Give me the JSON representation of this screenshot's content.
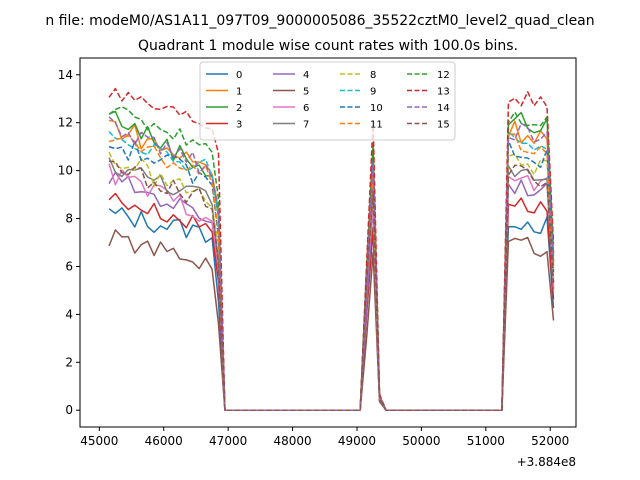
{
  "figure": {
    "suptitle": "n file: modeM0/AS1A11_097T09_9000005086_35522cztM0_level2_quad_clean",
    "offset_text": "+3.884e8"
  },
  "chart_data": {
    "type": "line",
    "title": "Quadrant 1 module wise count rates with 100.0s bins.",
    "xlabel": "",
    "ylabel": "",
    "x_offset": 388400000,
    "xlim": [
      44700,
      52400
    ],
    "ylim": [
      -0.7,
      14.7
    ],
    "xticks": [
      45000,
      46000,
      47000,
      48000,
      49000,
      50000,
      51000,
      52000
    ],
    "xtick_labels": [
      "45000",
      "46000",
      "47000",
      "48000",
      "49000",
      "50000",
      "51000",
      "52000"
    ],
    "yticks": [
      0,
      2,
      4,
      6,
      8,
      10,
      12,
      14
    ],
    "ytick_labels": [
      "0",
      "2",
      "4",
      "6",
      "8",
      "10",
      "12",
      "14"
    ],
    "grid": false,
    "legend_location": "upper-center",
    "segments": [
      {
        "start": 45150,
        "count": 18
      },
      {
        "start": 46950,
        "count": 21
      },
      {
        "start": 51350,
        "count": 8
      }
    ],
    "x": [
      45150,
      45250,
      45350,
      45450,
      45550,
      45650,
      45750,
      45850,
      45950,
      46050,
      46150,
      46250,
      46350,
      46450,
      46550,
      46650,
      46750,
      46850,
      46950,
      47050,
      47150,
      47250,
      47350,
      47450,
      47550,
      47650,
      47750,
      47850,
      47950,
      48050,
      48150,
      48250,
      48350,
      48450,
      48550,
      48650,
      48750,
      48850,
      48950,
      49050,
      49150,
      49250,
      49350,
      49450,
      49550,
      49650,
      49750,
      49850,
      49950,
      50050,
      50150,
      50250,
      50350,
      50450,
      50550,
      50650,
      50750,
      50850,
      50950,
      51050,
      51150,
      51250,
      51350,
      51450,
      51550,
      51650,
      51750,
      51850,
      51950,
      52050
    ],
    "series": [
      {
        "name": "0",
        "color": "#1f77b4",
        "dash": "solid",
        "level": 8.2,
        "jitter": 0.45,
        "tilt": -0.9,
        "drop": 0.55
      },
      {
        "name": "1",
        "color": "#ff7f0e",
        "dash": "solid",
        "level": 12.0,
        "jitter": 0.5,
        "tilt": -2.1,
        "drop": 0.7
      },
      {
        "name": "2",
        "color": "#2ca02c",
        "dash": "solid",
        "level": 12.4,
        "jitter": 0.45,
        "tilt": -2.6,
        "drop": 0.65
      },
      {
        "name": "3",
        "color": "#d62728",
        "dash": "solid",
        "level": 8.9,
        "jitter": 0.35,
        "tilt": -1.4,
        "drop": 0.6
      },
      {
        "name": "4",
        "color": "#9467bd",
        "dash": "solid",
        "level": 9.7,
        "jitter": 0.4,
        "tilt": -1.8,
        "drop": 0.6
      },
      {
        "name": "5",
        "color": "#8c564b",
        "dash": "solid",
        "level": 7.2,
        "jitter": 0.4,
        "tilt": -1.2,
        "drop": 0.5
      },
      {
        "name": "6",
        "color": "#e377c2",
        "dash": "solid",
        "level": 9.9,
        "jitter": 0.45,
        "tilt": -1.9,
        "drop": 0.6
      },
      {
        "name": "7",
        "color": "#7f7f7f",
        "dash": "solid",
        "level": 10.3,
        "jitter": 0.4,
        "tilt": -1.6,
        "drop": 0.6
      },
      {
        "name": "8",
        "color": "#bcbd22",
        "dash": "dashed",
        "level": 10.6,
        "jitter": 0.5,
        "tilt": -2.0,
        "drop": 0.65
      },
      {
        "name": "9",
        "color": "#17becf",
        "dash": "dashed",
        "level": 11.6,
        "jitter": 0.45,
        "tilt": -1.7,
        "drop": 0.7
      },
      {
        "name": "10",
        "color": "#1f77b4",
        "dash": "dashed",
        "level": 11.1,
        "jitter": 0.5,
        "tilt": -1.5,
        "drop": 0.65
      },
      {
        "name": "11",
        "color": "#ff7f0e",
        "dash": "dashed",
        "level": 11.4,
        "jitter": 0.4,
        "tilt": -1.8,
        "drop": 0.65
      },
      {
        "name": "12",
        "color": "#2ca02c",
        "dash": "dashed",
        "level": 12.6,
        "jitter": 0.35,
        "tilt": -1.7,
        "drop": 0.7
      },
      {
        "name": "13",
        "color": "#d62728",
        "dash": "dashed",
        "level": 13.4,
        "jitter": 0.35,
        "tilt": -1.5,
        "drop": 0.8
      },
      {
        "name": "14",
        "color": "#9467bd",
        "dash": "dashed",
        "level": 11.9,
        "jitter": 0.45,
        "tilt": -2.0,
        "drop": 0.7
      },
      {
        "name": "15",
        "color": "#8c564b",
        "dash": "dashed",
        "level": 10.2,
        "jitter": 0.4,
        "tilt": -1.6,
        "drop": 0.6
      }
    ]
  }
}
